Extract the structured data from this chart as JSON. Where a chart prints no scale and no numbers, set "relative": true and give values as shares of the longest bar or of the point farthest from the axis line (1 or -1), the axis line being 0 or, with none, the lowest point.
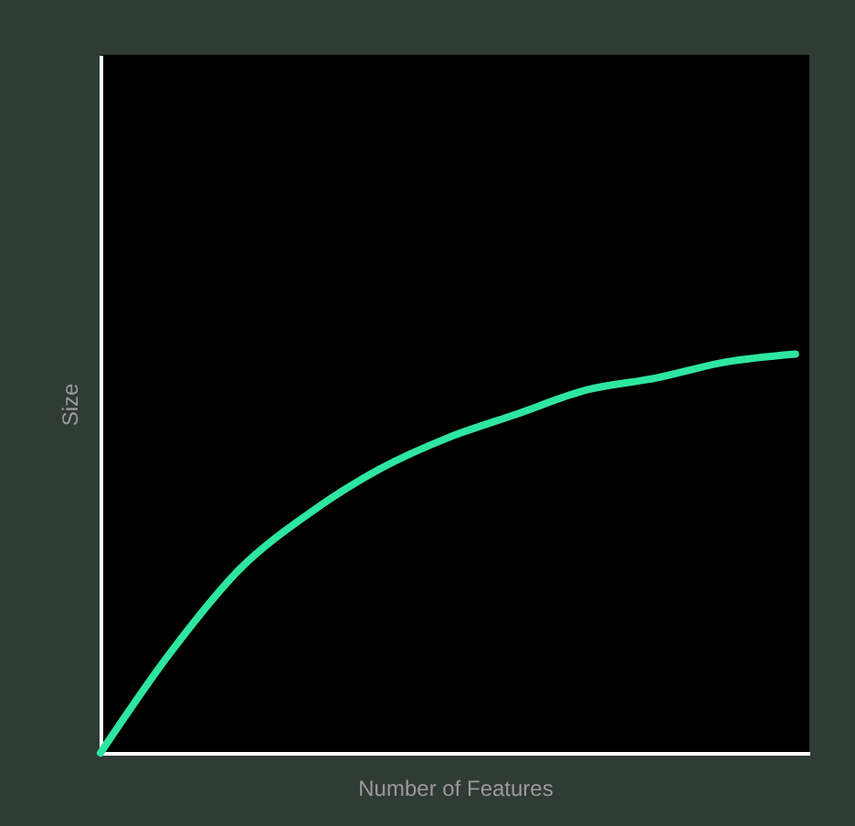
{
  "chart_data": {
    "type": "line",
    "xlabel": "Number of Features",
    "ylabel": "Size",
    "relative": true,
    "tick_labels": false,
    "grid": false,
    "marker": "none",
    "line_style": "solid",
    "categories": [
      null,
      null,
      null,
      null,
      null,
      null,
      null,
      null,
      null,
      null,
      null
    ],
    "series": [
      {
        "color": "#2ee6a0",
        "values": [
          0,
          0.25,
          0.46,
          0.6,
          0.71,
          0.79,
          0.85,
          0.91,
          0.94,
          0.98,
          1
        ]
      }
    ]
  }
}
